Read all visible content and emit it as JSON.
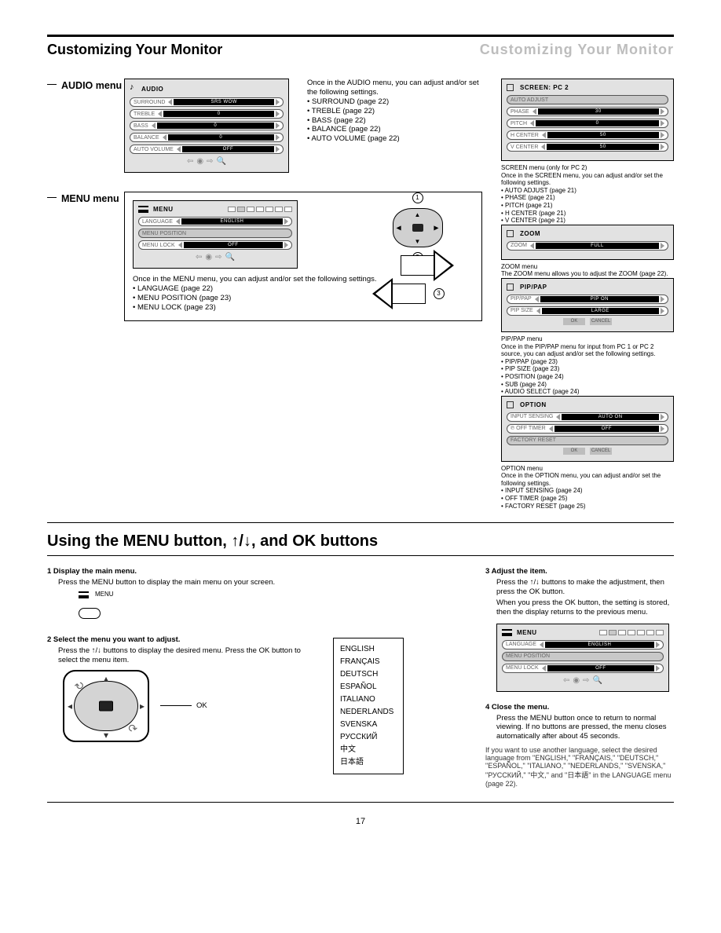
{
  "header": {
    "left": "Customizing Your Monitor",
    "right": "Customizing Your Monitor"
  },
  "audio": {
    "side_label": "AUDIO",
    "menu_title": "AUDIO",
    "rows": [
      {
        "label": "SURROUND",
        "value": "SRS WOW"
      },
      {
        "label": "TREBLE",
        "value": "0"
      },
      {
        "label": "BASS",
        "value": "0"
      },
      {
        "label": "BALANCE",
        "value": "0"
      },
      {
        "label": "AUTO VOLUME",
        "value": "OFF"
      }
    ],
    "desc_title": "Once in the AUDIO menu, you can adjust and/or set the following settings.",
    "items": [
      "• SURROUND (page 22)",
      "• TREBLE (page 22)",
      "• BASS (page 22)",
      "• BALANCE (page 22)",
      "• AUTO VOLUME (page 22)"
    ]
  },
  "menu": {
    "side_label": "MENU",
    "menu_title": "MENU",
    "rows": [
      {
        "label": "LANGUAGE",
        "value": "ENGLISH"
      },
      {
        "label": "MENU POSITION"
      },
      {
        "label": "MENU LOCK",
        "value": "OFF"
      }
    ],
    "desc_title": "Once in the MENU menu, you can adjust and/or set the following settings.",
    "items": [
      "• LANGUAGE (page 22)",
      "• MENU POSITION (page 23)",
      "• MENU LOCK (page 23)"
    ],
    "steps": {
      "s1": "1",
      "s2": "2",
      "s3": "3"
    }
  },
  "right_panels": [
    {
      "title": "SCREEN: PC 2",
      "rows": [
        {
          "label": "AUTO ADJUST"
        },
        {
          "label": "PHASE",
          "value": "30"
        },
        {
          "label": "PITCH",
          "value": "0"
        },
        {
          "label": "H CENTER",
          "value": "50"
        },
        {
          "label": "V CENTER",
          "value": "50"
        }
      ],
      "desc": "SCREEN menu (only for PC 2)\nOnce in the SCREEN menu, you can adjust and/or set the following settings.\n• AUTO ADJUST (page 21)\n• PHASE (page 21)\n• PITCH (page 21)\n• H CENTER (page 21)\n• V CENTER (page 21)"
    },
    {
      "title": "ZOOM",
      "rows": [
        {
          "label": "ZOOM",
          "value": "FULL"
        }
      ],
      "desc": "ZOOM menu\nThe ZOOM menu allows you to adjust the ZOOM (page 22)."
    },
    {
      "title": "PIP/PAP",
      "rows": [
        {
          "label": "PIP/PAP",
          "value": "PIP ON"
        },
        {
          "label": "PIP SIZE",
          "value": "LARGE"
        }
      ],
      "btns": [
        "OK",
        "CANCEL"
      ],
      "desc": "PIP/PAP menu\nOnce in the PIP/PAP menu for input from PC 1 or PC 2 source, you can adjust and/or set the following settings.\n• PIP/PAP (page 23)\n• PIP SIZE (page 23)\n• POSITION (page 24)\n• SUB (page 24)\n• AUDIO SELECT (page 24)"
    },
    {
      "title": "OPTION",
      "rows": [
        {
          "label": "INPUT SENSING",
          "value": "AUTO ON"
        },
        {
          "label": "℗ OFF TIMER",
          "value": "OFF"
        },
        {
          "label": "FACTORY RESET"
        }
      ],
      "btns": [
        "OK",
        "CANCEL"
      ],
      "desc": "OPTION menu\nOnce in the OPTION menu, you can adjust and/or set the following settings.\n• INPUT SENSING (page 24)\n• OFF TIMER (page 25)\n• FACTORY RESET (page 25)"
    }
  ],
  "using": {
    "title": "Using the MENU button, ↑/↓, and OK buttons",
    "step1_h": "1   Display the main menu.",
    "step1_b": "Press the MENU button to display the main menu on your screen.",
    "btn_label": "MENU",
    "step2_h": "2   Select the menu you want to adjust.",
    "step2_b": "Press the ↑/↓ buttons to display the desired menu. Press the OK button to select the menu item.",
    "ok_label": "OK",
    "step3_h": "3   Adjust the item.",
    "step3_a": "Press the ↑/↓ buttons to make the adjustment, then press the OK button.",
    "step3_b": "When you press the OK button, the setting is stored, then the display returns to the previous menu.",
    "step4_h": "4   Close the menu.",
    "step4_b": "Press the MENU button once to return to normal viewing. If no buttons are pressed, the menu closes automatically after about 45 seconds.",
    "lang_note": "If you want to use another language, select the desired language from \"ENGLISH,\" \"FRANÇAIS,\" \"DEUTSCH,\" \"ESPAÑOL,\" \"ITALIANO,\" \"NEDERLANDS,\" \"SVENSKA,\" \"РУССКИЙ,\" \"中文,\" and \"日本語\" in the LANGUAGE menu (page 22).",
    "langs": [
      "ENGLISH",
      "FRANÇAIS",
      "DEUTSCH",
      "ESPAÑOL",
      "ITALIANO",
      "NEDERLANDS",
      "SVENSKA",
      "РУССКИЙ",
      "中文",
      "日本語"
    ],
    "right_panel": {
      "title": "MENU",
      "rows": [
        {
          "label": "LANGUAGE",
          "value": "ENGLISH"
        },
        {
          "label": "MENU POSITION"
        },
        {
          "label": "MENU LOCK",
          "value": "OFF"
        }
      ]
    }
  },
  "page_number": "17"
}
